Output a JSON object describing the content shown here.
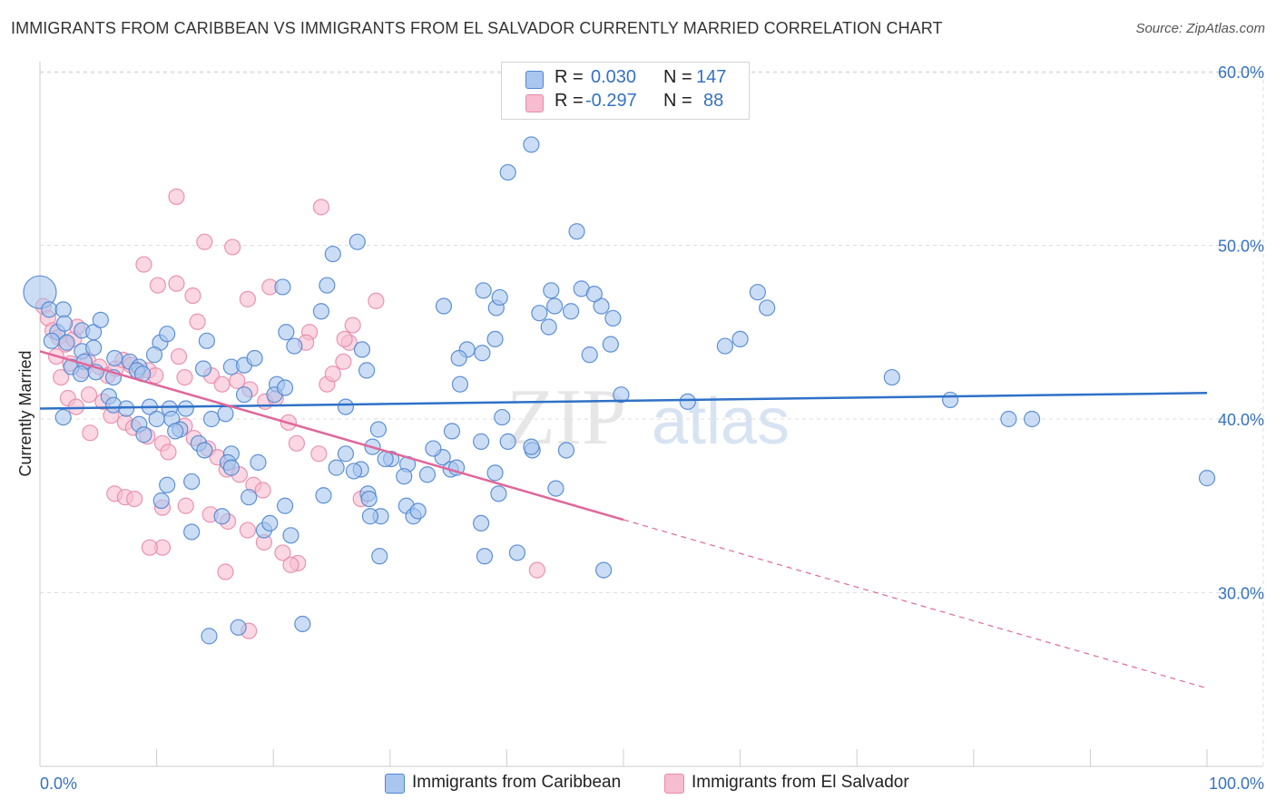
{
  "title": "IMMIGRANTS FROM CARIBBEAN VS IMMIGRANTS FROM EL SALVADOR CURRENTLY MARRIED CORRELATION CHART",
  "source": "Source: ZipAtlas.com",
  "watermark": {
    "zip": "ZIP",
    "atlas": "atlas"
  },
  "colors": {
    "caribbean_fill": "#a9c6ee",
    "caribbean_stroke": "#4f86d0",
    "caribbean_line": "#2f71c8",
    "elsalvador_fill": "#f6bcd0",
    "elsalvador_stroke": "#e88aaa",
    "elsalvador_line": "#e0679a",
    "tick_label": "#3571c4",
    "grid": "#dedede"
  },
  "legend_top": {
    "rows": [
      {
        "r_label": "R = ",
        "r_value": "0.030",
        "n_label": "N = ",
        "n_value": "147"
      },
      {
        "r_label": "R = ",
        "r_value": "-0.297",
        "n_label": "N = ",
        "n_value": "88"
      }
    ]
  },
  "legend_bottom": [
    "Immigrants from Caribbean",
    "Immigrants from El Salvador"
  ],
  "chart_data": {
    "type": "scatter",
    "title": "IMMIGRANTS FROM CARIBBEAN VS IMMIGRANTS FROM EL SALVADOR CURRENTLY MARRIED CORRELATION CHART",
    "xlabel": "",
    "ylabel": "Currently Married",
    "xlim": [
      0,
      100
    ],
    "ylim": [
      20,
      62
    ],
    "x_tick_labels": [
      "0.0%",
      "100.0%"
    ],
    "y_ticks": [
      30,
      40,
      50,
      60
    ],
    "y_tick_labels": [
      "30.0%",
      "40.0%",
      "50.0%",
      "60.0%"
    ],
    "grid": true,
    "legend_placement": "bottom-center",
    "series": [
      {
        "name": "Immigrants from Caribbean",
        "R": 0.03,
        "N": 147,
        "trend": {
          "x": [
            0,
            100
          ],
          "y": [
            40.6,
            41.5
          ]
        },
        "points": [
          [
            0.0,
            47.3
          ],
          [
            0.8,
            46.3
          ],
          [
            2.0,
            46.3
          ],
          [
            1.5,
            45.0
          ],
          [
            2.1,
            45.5
          ],
          [
            3.6,
            45.1
          ],
          [
            4.6,
            45.0
          ],
          [
            5.2,
            45.7
          ],
          [
            1.0,
            44.5
          ],
          [
            2.3,
            44.4
          ],
          [
            3.6,
            43.9
          ],
          [
            4.6,
            44.1
          ],
          [
            2.7,
            43.0
          ],
          [
            3.8,
            43.3
          ],
          [
            4.8,
            42.7
          ],
          [
            6.4,
            43.5
          ],
          [
            7.7,
            43.3
          ],
          [
            8.5,
            43.0
          ],
          [
            8.3,
            42.8
          ],
          [
            6.3,
            42.4
          ],
          [
            8.8,
            42.6
          ],
          [
            10.3,
            44.4
          ],
          [
            9.8,
            43.7
          ],
          [
            3.5,
            42.6
          ],
          [
            5.9,
            41.3
          ],
          [
            6.3,
            40.8
          ],
          [
            7.4,
            40.6
          ],
          [
            9.4,
            40.7
          ],
          [
            11.1,
            40.6
          ],
          [
            12.5,
            40.6
          ],
          [
            2.0,
            40.1
          ],
          [
            8.5,
            39.7
          ],
          [
            10.0,
            40.0
          ],
          [
            11.3,
            40.0
          ],
          [
            12.0,
            39.4
          ],
          [
            14.7,
            40.0
          ],
          [
            15.9,
            40.3
          ],
          [
            11.6,
            39.3
          ],
          [
            13.6,
            38.6
          ],
          [
            8.9,
            39.1
          ],
          [
            14.1,
            38.2
          ],
          [
            16.4,
            38.0
          ],
          [
            16.1,
            37.5
          ],
          [
            16.4,
            37.2
          ],
          [
            18.7,
            37.5
          ],
          [
            10.9,
            36.2
          ],
          [
            13.0,
            36.4
          ],
          [
            10.4,
            35.3
          ],
          [
            17.9,
            35.5
          ],
          [
            15.6,
            34.4
          ],
          [
            19.2,
            33.6
          ],
          [
            19.7,
            34.0
          ],
          [
            13.0,
            33.5
          ],
          [
            21.5,
            33.3
          ],
          [
            10.9,
            44.9
          ],
          [
            14.3,
            44.5
          ],
          [
            14.0,
            42.9
          ],
          [
            16.4,
            43.0
          ],
          [
            17.5,
            43.1
          ],
          [
            18.4,
            43.5
          ],
          [
            17.5,
            41.4
          ],
          [
            20.3,
            42.0
          ],
          [
            20.1,
            41.4
          ],
          [
            21.0,
            41.8
          ],
          [
            21.8,
            44.2
          ],
          [
            21.1,
            45.0
          ],
          [
            20.8,
            47.6
          ],
          [
            24.1,
            46.2
          ],
          [
            24.6,
            47.7
          ],
          [
            25.1,
            49.5
          ],
          [
            27.2,
            50.2
          ],
          [
            27.6,
            44.0
          ],
          [
            28.0,
            42.8
          ],
          [
            26.2,
            40.7
          ],
          [
            26.2,
            38.0
          ],
          [
            24.3,
            35.6
          ],
          [
            21.0,
            35.0
          ],
          [
            25.4,
            37.2
          ],
          [
            27.5,
            37.1
          ],
          [
            26.9,
            37.0
          ],
          [
            28.1,
            35.7
          ],
          [
            28.2,
            35.4
          ],
          [
            29.2,
            34.4
          ],
          [
            28.3,
            34.4
          ],
          [
            29.1,
            32.1
          ],
          [
            30.1,
            37.7
          ],
          [
            28.5,
            38.4
          ],
          [
            29.6,
            37.7
          ],
          [
            29.0,
            39.4
          ],
          [
            31.4,
            35.0
          ],
          [
            32.0,
            34.4
          ],
          [
            31.5,
            37.4
          ],
          [
            31.2,
            36.7
          ],
          [
            32.4,
            34.7
          ],
          [
            33.2,
            36.8
          ],
          [
            34.5,
            37.8
          ],
          [
            35.2,
            37.1
          ],
          [
            33.7,
            38.3
          ],
          [
            35.3,
            39.3
          ],
          [
            35.7,
            37.2
          ],
          [
            36.0,
            42.0
          ],
          [
            36.6,
            44.0
          ],
          [
            34.6,
            46.5
          ],
          [
            39.0,
            44.6
          ],
          [
            39.1,
            46.4
          ],
          [
            38.0,
            47.4
          ],
          [
            39.4,
            47.0
          ],
          [
            37.9,
            43.8
          ],
          [
            35.9,
            43.5
          ],
          [
            37.8,
            38.7
          ],
          [
            39.0,
            36.9
          ],
          [
            39.3,
            35.7
          ],
          [
            40.9,
            32.3
          ],
          [
            38.1,
            32.1
          ],
          [
            37.8,
            34.0
          ],
          [
            39.6,
            40.1
          ],
          [
            42.2,
            38.2
          ],
          [
            42.1,
            38.4
          ],
          [
            40.1,
            38.7
          ],
          [
            44.2,
            36.0
          ],
          [
            45.1,
            38.2
          ],
          [
            48.3,
            31.3
          ],
          [
            43.6,
            45.3
          ],
          [
            43.8,
            47.4
          ],
          [
            42.8,
            46.1
          ],
          [
            46.4,
            47.5
          ],
          [
            47.1,
            43.7
          ],
          [
            45.5,
            46.2
          ],
          [
            48.1,
            46.5
          ],
          [
            47.5,
            47.2
          ],
          [
            48.9,
            44.3
          ],
          [
            49.8,
            41.4
          ],
          [
            49.1,
            45.8
          ],
          [
            44.1,
            46.5
          ],
          [
            55.5,
            41.0
          ],
          [
            58.7,
            44.2
          ],
          [
            60.0,
            44.6
          ],
          [
            61.5,
            47.3
          ],
          [
            62.3,
            46.4
          ],
          [
            73.0,
            42.4
          ],
          [
            78.0,
            41.1
          ],
          [
            83.0,
            40.0
          ],
          [
            85.0,
            40.0
          ],
          [
            100.0,
            36.6
          ],
          [
            17.0,
            28.0
          ],
          [
            22.5,
            28.2
          ],
          [
            14.5,
            27.5
          ],
          [
            42.1,
            55.8
          ],
          [
            40.1,
            54.2
          ],
          [
            46.0,
            50.8
          ]
        ]
      },
      {
        "name": "Immigrants from El Salvador",
        "R": -0.297,
        "N": 88,
        "trend": {
          "x": [
            0,
            50,
            100
          ],
          "y": [
            43.9,
            34.2,
            24.5
          ]
        },
        "points": [
          [
            0.3,
            46.5
          ],
          [
            0.7,
            45.8
          ],
          [
            1.1,
            45.1
          ],
          [
            1.6,
            44.7
          ],
          [
            2.2,
            44.3
          ],
          [
            2.9,
            44.6
          ],
          [
            3.2,
            45.3
          ],
          [
            1.4,
            43.6
          ],
          [
            2.6,
            43.2
          ],
          [
            3.7,
            42.8
          ],
          [
            4.1,
            43.4
          ],
          [
            5.1,
            43.0
          ],
          [
            5.8,
            42.5
          ],
          [
            6.5,
            42.9
          ],
          [
            7.1,
            43.4
          ],
          [
            7.8,
            43.1
          ],
          [
            8.4,
            42.7
          ],
          [
            9.3,
            42.8
          ],
          [
            9.9,
            42.5
          ],
          [
            1.8,
            42.4
          ],
          [
            2.4,
            41.2
          ],
          [
            3.1,
            40.7
          ],
          [
            4.2,
            41.4
          ],
          [
            5.4,
            41.0
          ],
          [
            6.1,
            40.2
          ],
          [
            7.3,
            39.8
          ],
          [
            8.0,
            39.5
          ],
          [
            9.2,
            39.0
          ],
          [
            10.5,
            38.6
          ],
          [
            11.0,
            38.1
          ],
          [
            12.4,
            39.6
          ],
          [
            13.2,
            38.9
          ],
          [
            14.4,
            38.3
          ],
          [
            15.2,
            37.8
          ],
          [
            16.0,
            37.1
          ],
          [
            17.1,
            36.8
          ],
          [
            18.3,
            36.2
          ],
          [
            19.1,
            35.9
          ],
          [
            6.4,
            35.7
          ],
          [
            7.3,
            35.5
          ],
          [
            8.1,
            35.4
          ],
          [
            10.5,
            34.9
          ],
          [
            12.5,
            35.0
          ],
          [
            14.6,
            34.5
          ],
          [
            16.1,
            34.1
          ],
          [
            17.8,
            33.6
          ],
          [
            19.2,
            32.9
          ],
          [
            20.8,
            32.3
          ],
          [
            22.1,
            31.7
          ],
          [
            10.5,
            32.6
          ],
          [
            15.9,
            31.2
          ],
          [
            17.9,
            27.8
          ],
          [
            8.9,
            48.9
          ],
          [
            10.1,
            47.7
          ],
          [
            11.7,
            47.8
          ],
          [
            13.1,
            47.1
          ],
          [
            14.1,
            50.2
          ],
          [
            16.5,
            49.9
          ],
          [
            17.8,
            46.9
          ],
          [
            19.7,
            47.6
          ],
          [
            23.1,
            45.0
          ],
          [
            22.8,
            44.4
          ],
          [
            11.9,
            43.6
          ],
          [
            13.5,
            45.6
          ],
          [
            12.4,
            42.4
          ],
          [
            14.7,
            42.5
          ],
          [
            15.6,
            42.0
          ],
          [
            16.9,
            42.2
          ],
          [
            18.0,
            41.7
          ],
          [
            19.3,
            41.0
          ],
          [
            20.2,
            41.2
          ],
          [
            21.3,
            39.8
          ],
          [
            22.0,
            38.6
          ],
          [
            23.9,
            38.0
          ],
          [
            24.6,
            42.0
          ],
          [
            25.1,
            42.6
          ],
          [
            26.0,
            43.3
          ],
          [
            26.5,
            44.4
          ],
          [
            26.8,
            45.4
          ],
          [
            28.8,
            46.8
          ],
          [
            11.7,
            52.8
          ],
          [
            24.1,
            52.2
          ],
          [
            26.1,
            44.6
          ],
          [
            42.6,
            31.3
          ],
          [
            27.5,
            35.4
          ],
          [
            21.5,
            31.6
          ],
          [
            9.4,
            32.6
          ],
          [
            4.3,
            39.2
          ]
        ]
      }
    ]
  }
}
